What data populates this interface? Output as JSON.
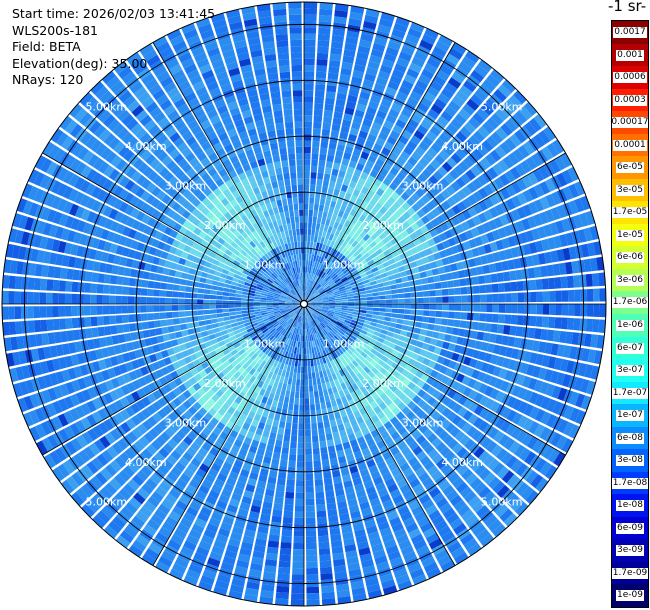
{
  "info": {
    "start_time": "Start time: 2026/02/03 13:41:45",
    "instrument": "WLS200s-181",
    "field": "Field: BETA",
    "elevation": "Elevation(deg): 35.00",
    "nrays": "NRays: 120"
  },
  "colorbar": {
    "title": "-1 sr-",
    "labels": [
      "0.0017",
      "0.001",
      "0.0006",
      "0.0003",
      "0.00017",
      "0.0001",
      "6e-05",
      "3e-05",
      "1.7e-05",
      "1e-05",
      "6e-06",
      "3e-06",
      "1.7e-06",
      "1e-06",
      "6e-07",
      "3e-07",
      "1.7e-07",
      "1e-07",
      "6e-08",
      "3e-08",
      "1.7e-08",
      "1e-08",
      "6e-09",
      "3e-09",
      "1.7e-09",
      "1e-09"
    ],
    "colors": [
      "#8b0000",
      "#b40000",
      "#dc0000",
      "#ff1e00",
      "#ff4800",
      "#ff7000",
      "#ff9600",
      "#ffbe00",
      "#ffe400",
      "#f4ff10",
      "#d6ff30",
      "#b4ff52",
      "#7cff8c",
      "#50ffb6",
      "#30ffd8",
      "#20fff0",
      "#14eaff",
      "#0ab6ff",
      "#0a8cff",
      "#0064ff",
      "#003cff",
      "#0014f0",
      "#0000d2",
      "#0000b4",
      "#000096",
      "#00006e"
    ]
  },
  "chart_data": {
    "type": "heatmap",
    "projection": "polar",
    "field": "BETA",
    "n_rays": 120,
    "elevation_deg": 35.0,
    "range_unit": "km",
    "max_range_km": 5.4,
    "range_rings_km": [
      1.0,
      2.0,
      3.0,
      4.0,
      5.0
    ],
    "ring_labels": [
      "1.00km",
      "2.00km",
      "3.00km",
      "4.00km",
      "5.00km"
    ],
    "ring_label_bearings_deg": [
      45,
      135,
      225,
      315
    ],
    "spoke_bearings_deg": [
      0,
      30,
      60,
      90,
      120,
      150,
      180,
      210,
      240,
      270,
      300,
      330
    ],
    "grid": true,
    "colorbar_side": "right",
    "color_scale": "log",
    "value_range": [
      1e-09,
      0.0017
    ],
    "typical_values": {
      "near_center_0_1km": "3e-08 to 1e-07",
      "bright_lobes_1_2_5km": "1e-07 to 6e-07",
      "far_field_2_5_5km": "1e-08 to 6e-08"
    }
  }
}
